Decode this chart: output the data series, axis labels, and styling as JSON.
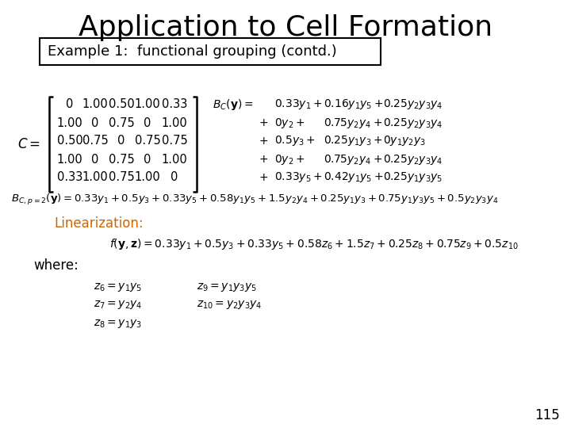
{
  "title": "Application to Cell Formation",
  "subtitle": "Example 1:  functional grouping (contd.)",
  "background_color": "#ffffff",
  "title_color": "#000000",
  "subtitle_color": "#000000",
  "linearization_color": "#cc6600",
  "page_number": "115",
  "matrix": [
    [
      "0",
      "1.00",
      "0.50",
      "1.00",
      "0.33"
    ],
    [
      "1.00",
      "0",
      "0.75",
      "0",
      "1.00"
    ],
    [
      "0.50",
      "0.75",
      "0",
      "0.75",
      "0.75"
    ],
    [
      "1.00",
      "0",
      "0.75",
      "0",
      "1.00"
    ],
    [
      "0.33",
      "1.00",
      "0.75",
      "1.00",
      "0"
    ]
  ]
}
